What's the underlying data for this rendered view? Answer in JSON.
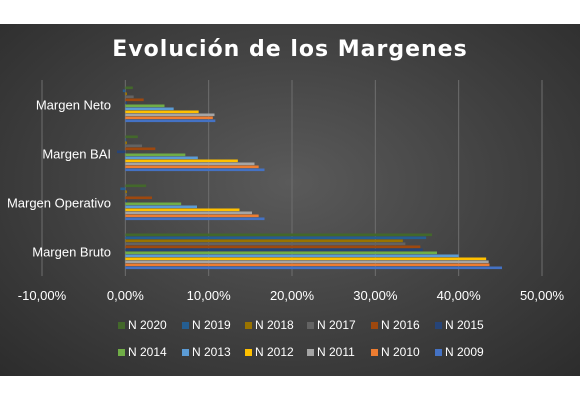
{
  "chart_data": {
    "type": "bar",
    "orientation": "horizontal",
    "title": "Evolución de los Margenes",
    "categories": [
      "Margen Bruto",
      "Margen Operativo",
      "Margen BAI",
      "Margen Neto"
    ],
    "xlim": [
      -0.1,
      0.5
    ],
    "xticks": [
      -0.1,
      0.0,
      0.1,
      0.2,
      0.3,
      0.4,
      0.5
    ],
    "xtick_labels": [
      "-10,00%",
      "0,00%",
      "10,00%",
      "20,00%",
      "30,00%",
      "40,00%",
      "50,00%"
    ],
    "grid": true,
    "legend_position": "bottom",
    "series": [
      {
        "name": "N 2009",
        "color": "#4472C4",
        "values": [
          0.452,
          0.167,
          0.167,
          0.108
        ]
      },
      {
        "name": "N 2010",
        "color": "#ED7D31",
        "values": [
          0.437,
          0.16,
          0.16,
          0.105
        ]
      },
      {
        "name": "N 2011",
        "color": "#A5A5A5",
        "values": [
          0.436,
          0.152,
          0.155,
          0.107
        ]
      },
      {
        "name": "N 2012",
        "color": "#FFC000",
        "values": [
          0.433,
          0.137,
          0.135,
          0.088
        ]
      },
      {
        "name": "N 2013",
        "color": "#5B9BD5",
        "values": [
          0.4,
          0.086,
          0.087,
          0.058
        ]
      },
      {
        "name": "N 2014",
        "color": "#70AD47",
        "values": [
          0.374,
          0.067,
          0.072,
          0.047
        ]
      },
      {
        "name": "N 2015",
        "color": "#264478",
        "values": [
          0.357,
          0.002,
          -0.01,
          0.002
        ]
      },
      {
        "name": "N 2016",
        "color": "#9E480E",
        "values": [
          0.354,
          0.032,
          0.036,
          0.022
        ]
      },
      {
        "name": "N 2017",
        "color": "#636363",
        "values": [
          0.336,
          0.002,
          0.02,
          0.01
        ]
      },
      {
        "name": "N 2018",
        "color": "#997300",
        "values": [
          0.333,
          0.002,
          0.002,
          0.002
        ]
      },
      {
        "name": "N 2019",
        "color": "#255E91",
        "values": [
          0.361,
          -0.006,
          0.001,
          -0.003
        ]
      },
      {
        "name": "N 2020",
        "color": "#43682B",
        "values": [
          0.368,
          0.025,
          0.015,
          0.009
        ]
      }
    ],
    "legend_rows": [
      [
        "N 2020",
        "N 2019",
        "N 2018",
        "N 2017",
        "N 2016",
        "N 2015"
      ],
      [
        "N 2014",
        "N 2013",
        "N 2012",
        "N 2011",
        "N 2010",
        "N 2009"
      ]
    ]
  }
}
